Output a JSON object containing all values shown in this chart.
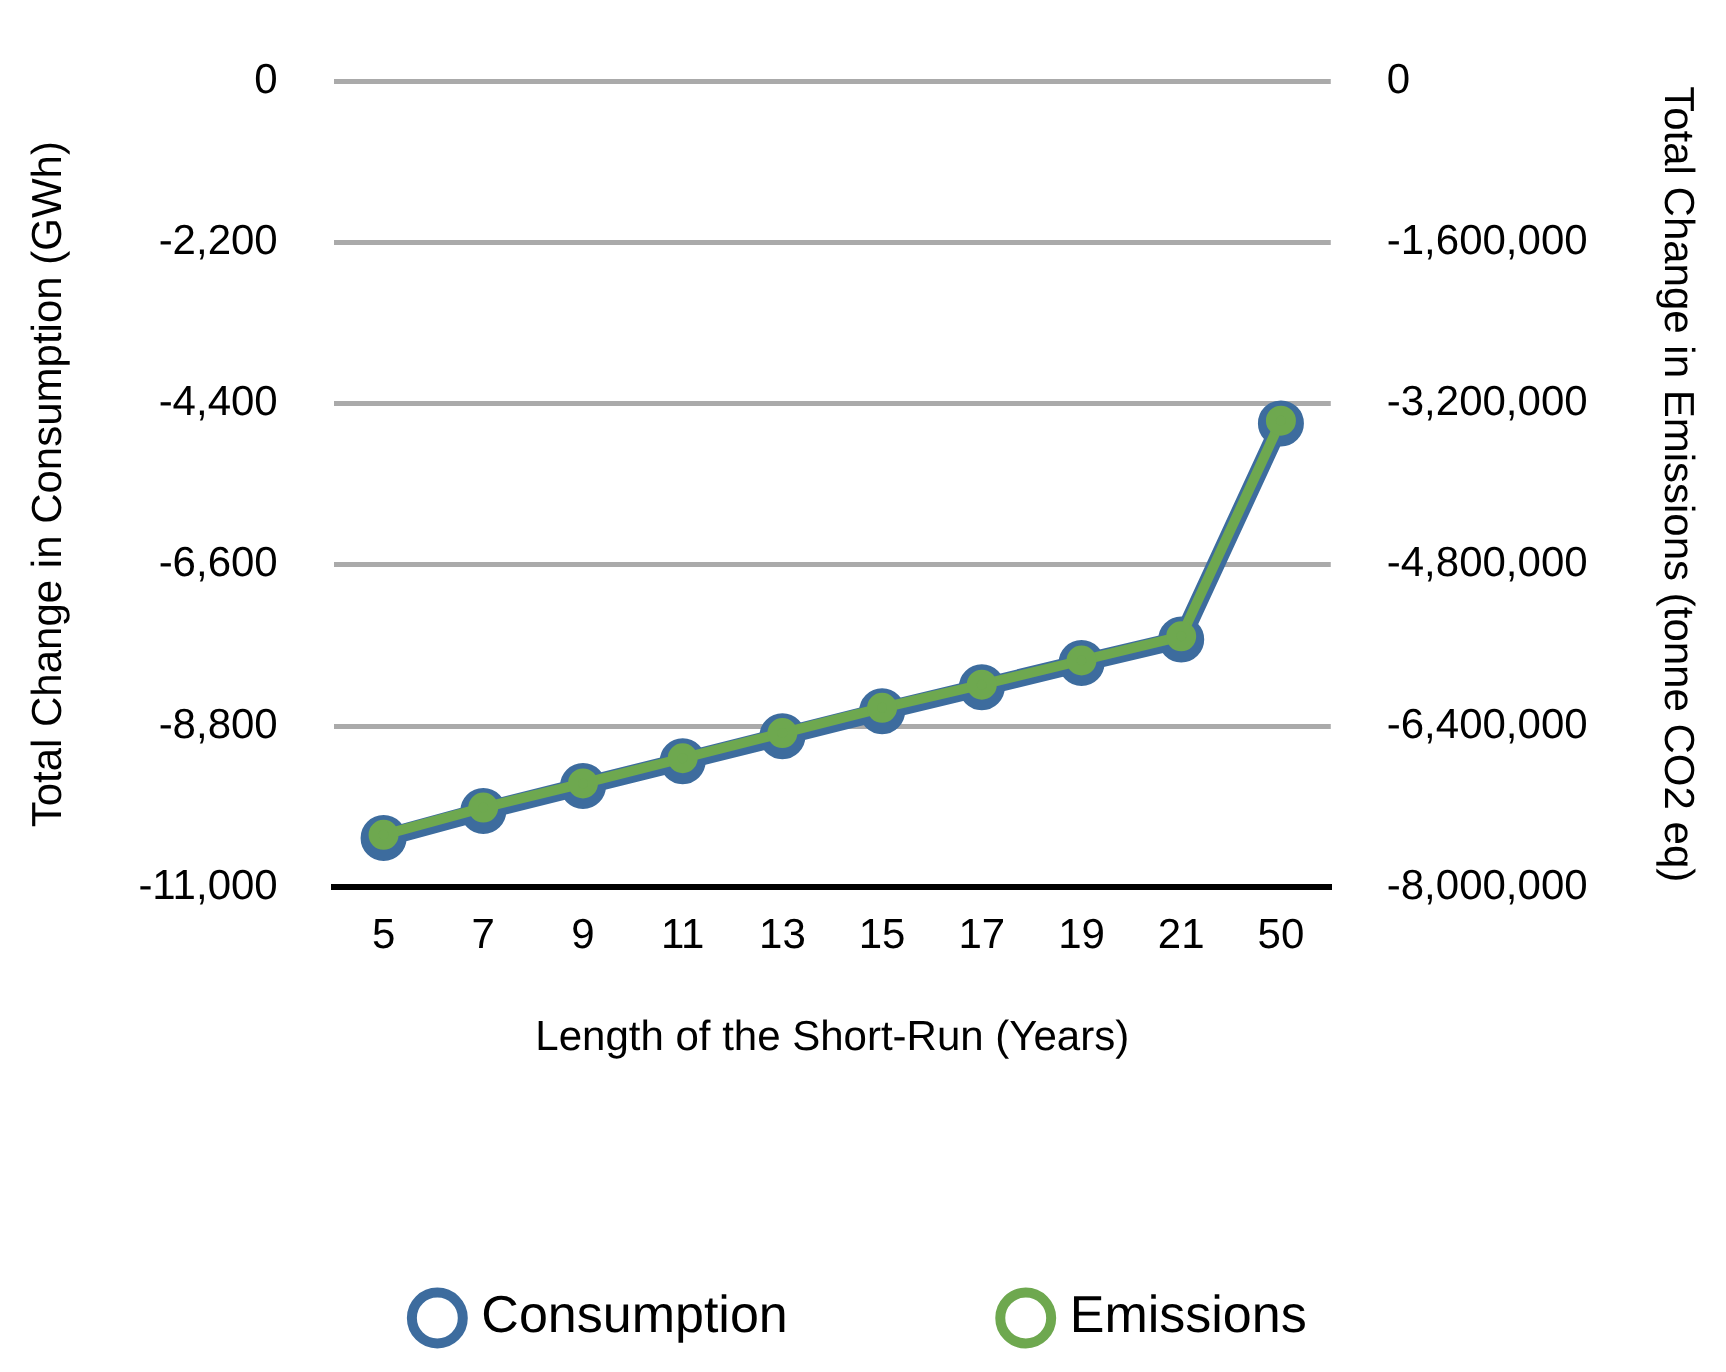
{
  "chart_data": {
    "type": "line",
    "xlabel": "Length of the Short-Run (Years)",
    "ylabel": "Total Change in Consumption (GWh)",
    "y2label": "Total Change in Emissions (tonne CO2 eq)",
    "categories": [
      "5",
      "7",
      "9",
      "11",
      "13",
      "15",
      "17",
      "19",
      "21",
      "50"
    ],
    "series": [
      {
        "name": "Consumption",
        "color": "#3d6c9e",
        "values": [
          -10330,
          -9960,
          -9620,
          -9280,
          -8940,
          -8600,
          -8270,
          -7940,
          -7620,
          -4670
        ]
      },
      {
        "name": "Emissions",
        "color": "#6ea84f",
        "axis": "y2",
        "values": [
          -7480000,
          -7210000,
          -6970000,
          -6720000,
          -6470000,
          -6220000,
          -5990000,
          -5750000,
          -5510000,
          -3370000
        ]
      }
    ],
    "ylim": [
      -11000,
      0
    ],
    "yticks": [
      {
        "value": -11000,
        "label": "-11,000"
      },
      {
        "value": -8800,
        "label": "-8,800"
      },
      {
        "value": -6600,
        "label": "-6,600"
      },
      {
        "value": -4400,
        "label": "-4,400"
      },
      {
        "value": -2200,
        "label": "-2,200"
      },
      0
    ],
    "y2lim": [
      -8000000,
      0
    ],
    "y2ticks": [
      {
        "value": -8000000,
        "label": "-8,000,000"
      },
      {
        "value": -6400000,
        "label": "-6,400,000"
      },
      {
        "value": -4800000,
        "label": "-4,800,000"
      },
      {
        "value": -3200000,
        "label": "-3,200,000"
      },
      {
        "value": -1600000,
        "label": "-1,600,000"
      },
      0
    ],
    "grid": "y",
    "legend": "bottom",
    "marker": "circle",
    "line_style": "solid"
  }
}
